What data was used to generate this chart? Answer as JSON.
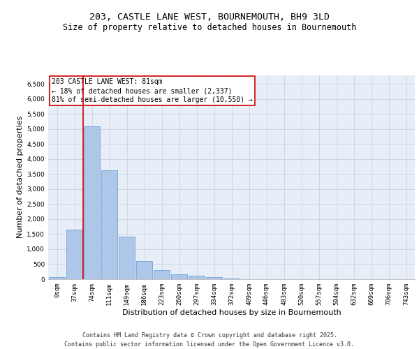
{
  "title_line1": "203, CASTLE LANE WEST, BOURNEMOUTH, BH9 3LD",
  "title_line2": "Size of property relative to detached houses in Bournemouth",
  "xlabel": "Distribution of detached houses by size in Bournemouth",
  "ylabel": "Number of detached properties",
  "bar_labels": [
    "0sqm",
    "37sqm",
    "74sqm",
    "111sqm",
    "149sqm",
    "186sqm",
    "223sqm",
    "260sqm",
    "297sqm",
    "334sqm",
    "372sqm",
    "409sqm",
    "446sqm",
    "483sqm",
    "520sqm",
    "557sqm",
    "594sqm",
    "632sqm",
    "669sqm",
    "706sqm",
    "743sqm"
  ],
  "bar_values": [
    60,
    1650,
    5100,
    3620,
    1420,
    610,
    305,
    155,
    110,
    75,
    30,
    5,
    0,
    0,
    0,
    0,
    0,
    0,
    0,
    0,
    0
  ],
  "bar_color": "#aec6e8",
  "bar_edge_color": "#5b9bd5",
  "vline_color": "#cc0000",
  "vline_x_index": 2,
  "annotation_box_text": "203 CASTLE LANE WEST: 81sqm\n← 18% of detached houses are smaller (2,337)\n81% of semi-detached houses are larger (10,550) →",
  "annotation_box_color": "#cc0000",
  "annotation_box_facecolor": "#ffffff",
  "ylim": [
    0,
    6800
  ],
  "yticks": [
    0,
    500,
    1000,
    1500,
    2000,
    2500,
    3000,
    3500,
    4000,
    4500,
    5000,
    5500,
    6000,
    6500
  ],
  "grid_color": "#c8d4e0",
  "background_color": "#e8eef8",
  "footer_text": "Contains HM Land Registry data © Crown copyright and database right 2025.\nContains public sector information licensed under the Open Government Licence v3.0.",
  "title_fontsize": 9.5,
  "subtitle_fontsize": 8.5,
  "axis_label_fontsize": 8,
  "tick_fontsize": 6.5,
  "annotation_fontsize": 7,
  "footer_fontsize": 6
}
